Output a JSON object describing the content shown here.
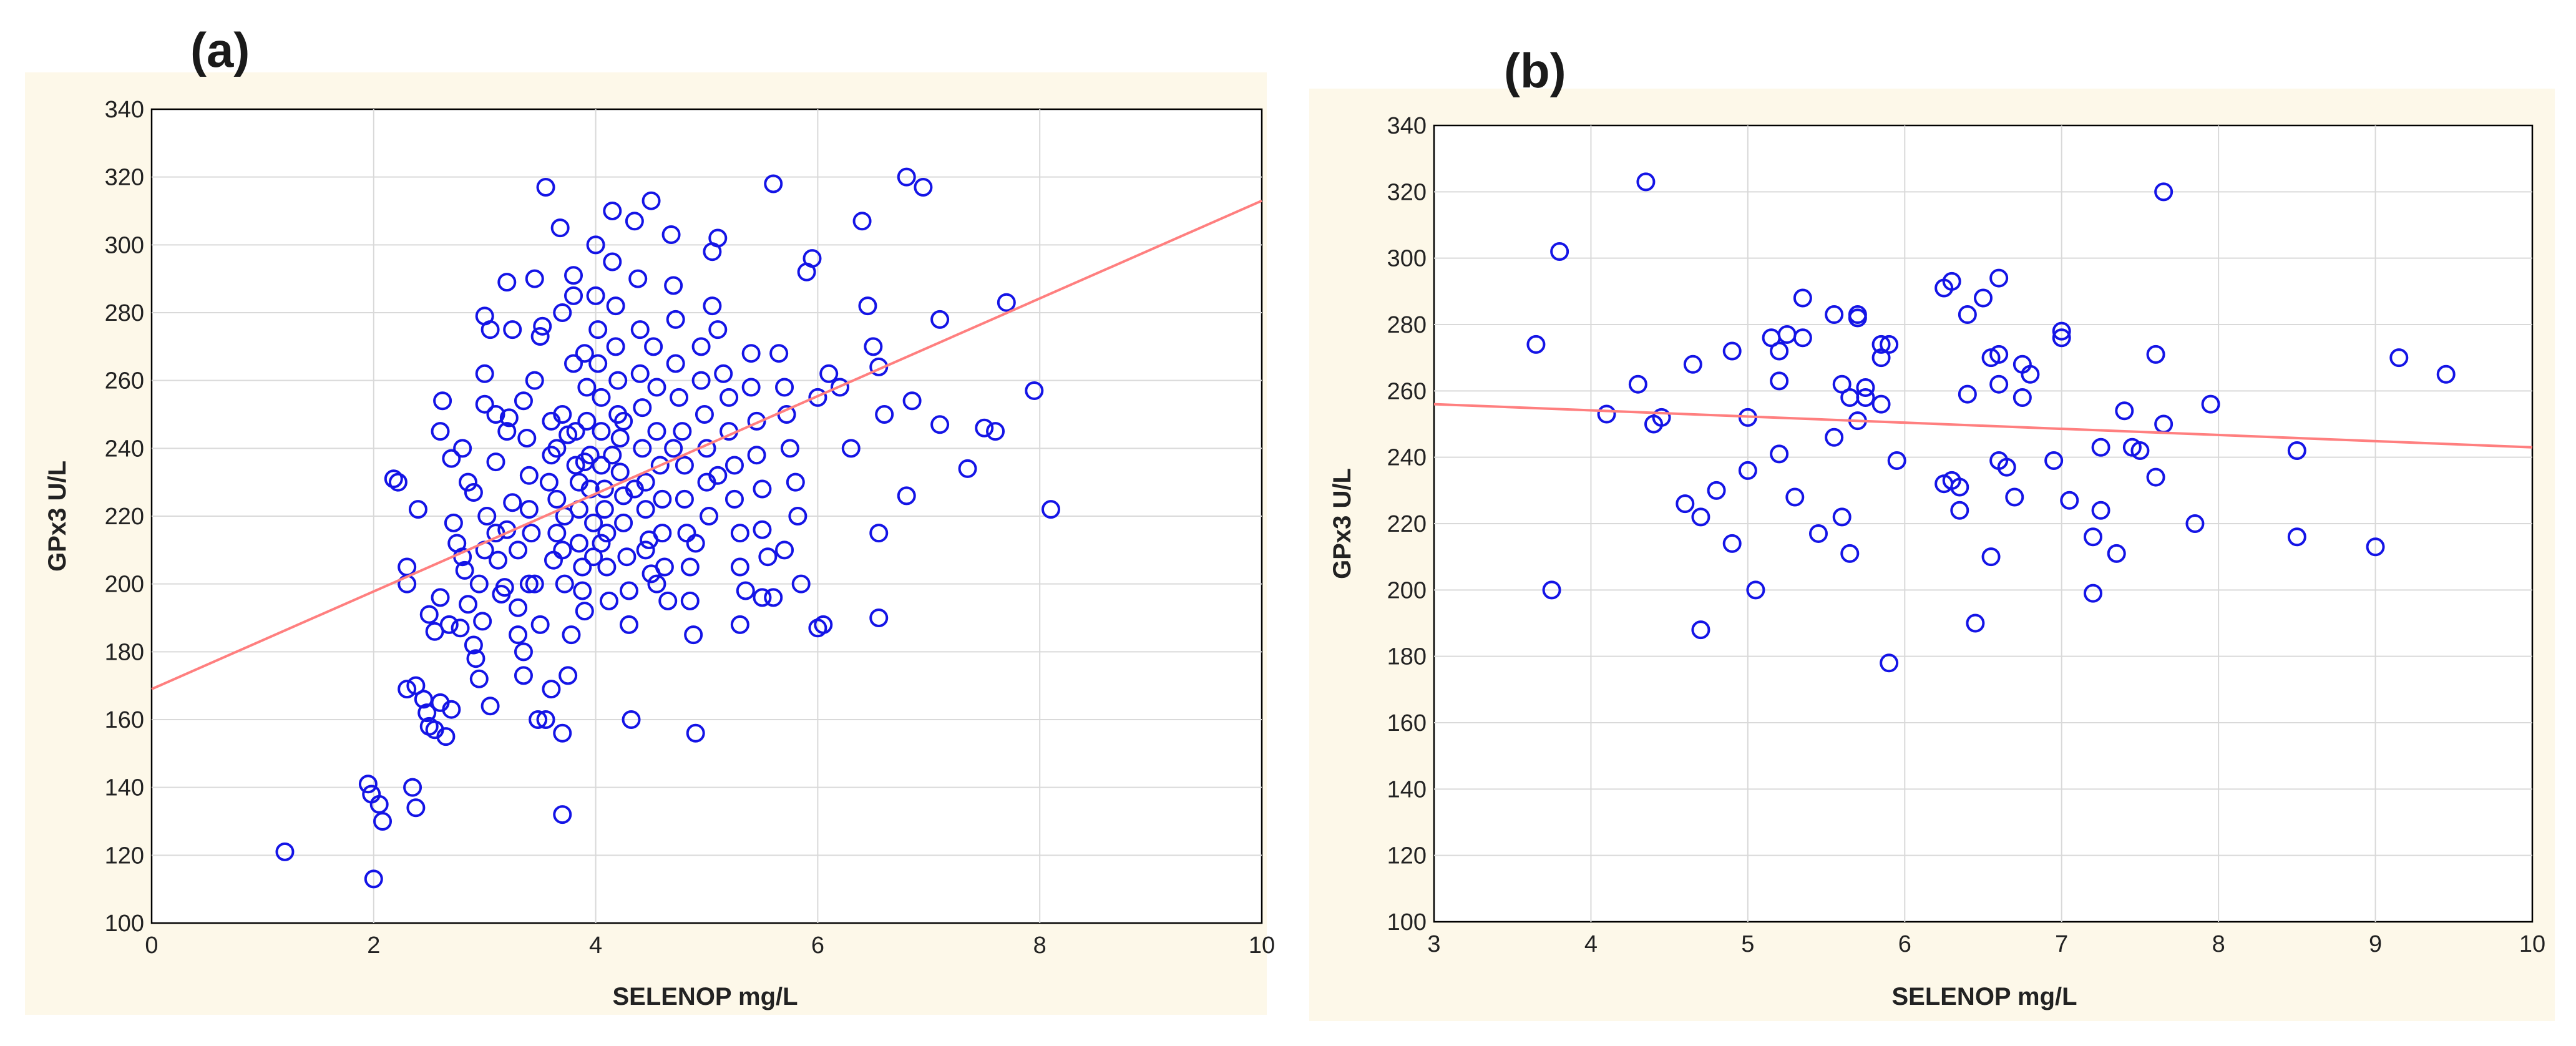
{
  "colors": {
    "points": "#1414e6",
    "fit_line": "#ff7f7f",
    "panel_bg": "#fdf8e9",
    "grid": "#d9d9d9"
  },
  "chart_data": [
    {
      "type": "scatter",
      "panel_label": "(a)",
      "xlabel": "SELENOP mg/L",
      "ylabel": "GPx3 U/L",
      "xlim": [
        0,
        10
      ],
      "ylim": [
        100,
        340
      ],
      "xticks": [
        0,
        2,
        4,
        6,
        8,
        10
      ],
      "yticks": [
        100,
        120,
        140,
        160,
        180,
        200,
        220,
        240,
        260,
        280,
        300,
        320,
        340
      ],
      "grid": true,
      "fit_line": {
        "x": [
          0,
          10
        ],
        "y": [
          169,
          313
        ]
      },
      "points": [
        [
          1.2,
          121
        ],
        [
          2.0,
          113
        ],
        [
          1.95,
          141
        ],
        [
          1.98,
          138
        ],
        [
          2.05,
          135
        ],
        [
          2.08,
          130
        ],
        [
          2.35,
          140
        ],
        [
          2.38,
          134
        ],
        [
          2.3,
          169
        ],
        [
          2.38,
          170
        ],
        [
          2.45,
          166
        ],
        [
          2.48,
          162
        ],
        [
          2.5,
          158
        ],
        [
          2.55,
          157
        ],
        [
          2.6,
          165
        ],
        [
          2.65,
          155
        ],
        [
          2.7,
          163
        ],
        [
          2.18,
          231
        ],
        [
          2.22,
          230
        ],
        [
          2.3,
          205
        ],
        [
          2.3,
          200
        ],
        [
          2.4,
          222
        ],
        [
          2.5,
          191
        ],
        [
          2.55,
          186
        ],
        [
          2.6,
          245
        ],
        [
          2.62,
          254
        ],
        [
          2.7,
          237
        ],
        [
          2.72,
          218
        ],
        [
          2.75,
          212
        ],
        [
          2.6,
          196
        ],
        [
          2.68,
          188
        ],
        [
          2.78,
          187
        ],
        [
          2.8,
          240
        ],
        [
          2.85,
          230
        ],
        [
          2.8,
          208
        ],
        [
          2.82,
          204
        ],
        [
          2.85,
          194
        ],
        [
          2.9,
          182
        ],
        [
          2.92,
          178
        ],
        [
          2.95,
          172
        ],
        [
          2.98,
          189
        ],
        [
          2.95,
          200
        ],
        [
          3.0,
          210
        ],
        [
          3.02,
          220
        ],
        [
          3.0,
          253
        ],
        [
          3.0,
          262
        ],
        [
          3.0,
          279
        ],
        [
          3.05,
          275
        ],
        [
          3.05,
          164
        ],
        [
          3.1,
          236
        ],
        [
          3.1,
          215
        ],
        [
          3.12,
          207
        ],
        [
          3.15,
          197
        ],
        [
          3.18,
          199
        ],
        [
          3.2,
          245
        ],
        [
          3.2,
          289
        ],
        [
          3.25,
          275
        ],
        [
          3.22,
          249
        ],
        [
          3.25,
          224
        ],
        [
          3.3,
          210
        ],
        [
          3.3,
          193
        ],
        [
          3.3,
          185
        ],
        [
          3.35,
          180
        ],
        [
          3.35,
          173
        ],
        [
          3.35,
          254
        ],
        [
          3.38,
          243
        ],
        [
          3.4,
          232
        ],
        [
          3.4,
          222
        ],
        [
          3.42,
          215
        ],
        [
          3.45,
          260
        ],
        [
          3.45,
          290
        ],
        [
          3.45,
          200
        ],
        [
          3.48,
          160
        ],
        [
          3.5,
          188
        ],
        [
          3.5,
          273
        ],
        [
          3.52,
          276
        ],
        [
          3.55,
          317
        ],
        [
          3.55,
          160
        ],
        [
          3.58,
          230
        ],
        [
          3.6,
          248
        ],
        [
          3.6,
          169
        ],
        [
          3.62,
          207
        ],
        [
          3.65,
          215
        ],
        [
          3.65,
          225
        ],
        [
          3.65,
          240
        ],
        [
          3.68,
          305
        ],
        [
          3.7,
          280
        ],
        [
          3.7,
          250
        ],
        [
          3.7,
          210
        ],
        [
          3.72,
          220
        ],
        [
          3.72,
          200
        ],
        [
          3.7,
          132
        ],
        [
          3.7,
          156
        ],
        [
          3.75,
          173
        ],
        [
          3.78,
          185
        ],
        [
          3.8,
          291
        ],
        [
          3.8,
          285
        ],
        [
          3.8,
          265
        ],
        [
          3.82,
          245
        ],
        [
          3.82,
          235
        ],
        [
          3.85,
          230
        ],
        [
          3.85,
          222
        ],
        [
          3.85,
          212
        ],
        [
          3.88,
          205
        ],
        [
          3.88,
          198
        ],
        [
          3.9,
          192
        ],
        [
          3.9,
          268
        ],
        [
          3.92,
          258
        ],
        [
          3.92,
          248
        ],
        [
          3.95,
          238
        ],
        [
          3.95,
          228
        ],
        [
          3.98,
          218
        ],
        [
          3.98,
          208
        ],
        [
          4.0,
          300
        ],
        [
          4.0,
          285
        ],
        [
          4.02,
          275
        ],
        [
          4.02,
          265
        ],
        [
          4.05,
          255
        ],
        [
          4.05,
          245
        ],
        [
          4.05,
          235
        ],
        [
          4.08,
          228
        ],
        [
          4.08,
          222
        ],
        [
          4.1,
          215
        ],
        [
          4.1,
          205
        ],
        [
          4.12,
          195
        ],
        [
          4.15,
          310
        ],
        [
          4.15,
          295
        ],
        [
          4.18,
          282
        ],
        [
          4.18,
          270
        ],
        [
          4.2,
          260
        ],
        [
          4.2,
          250
        ],
        [
          4.22,
          243
        ],
        [
          4.22,
          233
        ],
        [
          4.25,
          226
        ],
        [
          4.25,
          218
        ],
        [
          4.28,
          208
        ],
        [
          4.3,
          198
        ],
        [
          4.3,
          188
        ],
        [
          4.32,
          160
        ],
        [
          4.35,
          307
        ],
        [
          4.38,
          290
        ],
        [
          4.4,
          275
        ],
        [
          4.4,
          262
        ],
        [
          4.42,
          252
        ],
        [
          4.42,
          240
        ],
        [
          4.45,
          230
        ],
        [
          4.45,
          222
        ],
        [
          4.48,
          213
        ],
        [
          4.5,
          203
        ],
        [
          4.5,
          313
        ],
        [
          4.52,
          270
        ],
        [
          4.55,
          258
        ],
        [
          4.55,
          245
        ],
        [
          4.58,
          235
        ],
        [
          4.6,
          225
        ],
        [
          4.6,
          215
        ],
        [
          4.62,
          205
        ],
        [
          4.65,
          195
        ],
        [
          4.68,
          303
        ],
        [
          4.7,
          288
        ],
        [
          4.72,
          278
        ],
        [
          4.72,
          265
        ],
        [
          4.75,
          255
        ],
        [
          4.78,
          245
        ],
        [
          4.8,
          235
        ],
        [
          4.8,
          225
        ],
        [
          4.82,
          215
        ],
        [
          4.85,
          205
        ],
        [
          4.85,
          195
        ],
        [
          4.88,
          185
        ],
        [
          4.9,
          156
        ],
        [
          4.95,
          270
        ],
        [
          4.95,
          260
        ],
        [
          4.98,
          250
        ],
        [
          5.0,
          240
        ],
        [
          5.0,
          230
        ],
        [
          5.02,
          220
        ],
        [
          5.05,
          298
        ],
        [
          5.05,
          282
        ],
        [
          5.1,
          302
        ],
        [
          5.1,
          275
        ],
        [
          5.15,
          262
        ],
        [
          5.2,
          255
        ],
        [
          5.2,
          245
        ],
        [
          5.25,
          235
        ],
        [
          5.25,
          225
        ],
        [
          5.3,
          215
        ],
        [
          5.3,
          205
        ],
        [
          5.35,
          198
        ],
        [
          5.4,
          268
        ],
        [
          5.4,
          258
        ],
        [
          5.45,
          248
        ],
        [
          5.45,
          238
        ],
        [
          5.5,
          228
        ],
        [
          5.5,
          216
        ],
        [
          5.55,
          208
        ],
        [
          5.6,
          196
        ],
        [
          5.6,
          318
        ],
        [
          5.65,
          268
        ],
        [
          5.7,
          258
        ],
        [
          5.72,
          250
        ],
        [
          5.75,
          240
        ],
        [
          5.8,
          230
        ],
        [
          5.82,
          220
        ],
        [
          5.85,
          200
        ],
        [
          5.9,
          292
        ],
        [
          5.95,
          296
        ],
        [
          6.0,
          187
        ],
        [
          6.05,
          188
        ],
        [
          6.1,
          262
        ],
        [
          6.2,
          258
        ],
        [
          6.3,
          240
        ],
        [
          6.4,
          307
        ],
        [
          6.45,
          282
        ],
        [
          6.5,
          270
        ],
        [
          6.55,
          264
        ],
        [
          6.55,
          215
        ],
        [
          6.55,
          190
        ],
        [
          6.6,
          250
        ],
        [
          6.8,
          226
        ],
        [
          6.85,
          254
        ],
        [
          6.8,
          320
        ],
        [
          6.95,
          317
        ],
        [
          7.1,
          278
        ],
        [
          7.1,
          247
        ],
        [
          7.35,
          234
        ],
        [
          7.5,
          246
        ],
        [
          7.6,
          245
        ],
        [
          7.7,
          283
        ],
        [
          7.95,
          257
        ],
        [
          8.1,
          222
        ],
        [
          2.9,
          227
        ],
        [
          3.1,
          250
        ],
        [
          3.2,
          216
        ],
        [
          3.4,
          200
        ],
        [
          3.6,
          238
        ],
        [
          3.75,
          244
        ],
        [
          3.9,
          236
        ],
        [
          4.05,
          212
        ],
        [
          4.15,
          238
        ],
        [
          4.25,
          248
        ],
        [
          4.35,
          228
        ],
        [
          4.45,
          210
        ],
        [
          4.55,
          200
        ],
        [
          4.7,
          240
        ],
        [
          4.9,
          212
        ],
        [
          5.1,
          232
        ],
        [
          5.3,
          188
        ],
        [
          5.5,
          196
        ],
        [
          5.7,
          210
        ],
        [
          6.0,
          255
        ]
      ]
    },
    {
      "type": "scatter",
      "panel_label": "(b)",
      "xlabel": "SELENOP mg/L",
      "ylabel": "GPx3 U/L",
      "xlim": [
        3,
        10
      ],
      "ylim": [
        100,
        340
      ],
      "xticks": [
        3,
        4,
        5,
        6,
        7,
        8,
        9,
        10
      ],
      "yticks": [
        100,
        120,
        140,
        160,
        180,
        200,
        220,
        240,
        260,
        280,
        300,
        320,
        340
      ],
      "grid": true,
      "fit_line": {
        "x": [
          3,
          10
        ],
        "y": [
          256,
          243
        ]
      },
      "points": [
        [
          3.65,
          274
        ],
        [
          3.75,
          200
        ],
        [
          3.8,
          302
        ],
        [
          4.1,
          253
        ],
        [
          4.3,
          262
        ],
        [
          4.35,
          323
        ],
        [
          4.4,
          250
        ],
        [
          4.45,
          252
        ],
        [
          4.6,
          226
        ],
        [
          4.65,
          268
        ],
        [
          4.7,
          188
        ],
        [
          4.7,
          222
        ],
        [
          4.8,
          230
        ],
        [
          4.9,
          214
        ],
        [
          4.9,
          272
        ],
        [
          5.0,
          236
        ],
        [
          5.0,
          252
        ],
        [
          5.05,
          200
        ],
        [
          5.15,
          276
        ],
        [
          5.2,
          272
        ],
        [
          5.2,
          263
        ],
        [
          5.2,
          241
        ],
        [
          5.25,
          277
        ],
        [
          5.3,
          228
        ],
        [
          5.35,
          288
        ],
        [
          5.35,
          276
        ],
        [
          5.45,
          217
        ],
        [
          5.55,
          246
        ],
        [
          5.55,
          283
        ],
        [
          5.6,
          262
        ],
        [
          5.6,
          222
        ],
        [
          5.65,
          211
        ],
        [
          5.65,
          258
        ],
        [
          5.7,
          251
        ],
        [
          5.7,
          282
        ],
        [
          5.7,
          283
        ],
        [
          5.75,
          258
        ],
        [
          5.75,
          261
        ],
        [
          5.85,
          274
        ],
        [
          5.85,
          270
        ],
        [
          5.85,
          256
        ],
        [
          5.9,
          274
        ],
        [
          5.9,
          178
        ],
        [
          5.95,
          239
        ],
        [
          6.25,
          291
        ],
        [
          6.3,
          293
        ],
        [
          6.25,
          232
        ],
        [
          6.3,
          233
        ],
        [
          6.35,
          231
        ],
        [
          6.35,
          224
        ],
        [
          6.4,
          283
        ],
        [
          6.4,
          259
        ],
        [
          6.45,
          190
        ],
        [
          6.5,
          288
        ],
        [
          6.55,
          270
        ],
        [
          6.55,
          210
        ],
        [
          6.6,
          271
        ],
        [
          6.6,
          294
        ],
        [
          6.6,
          239
        ],
        [
          6.6,
          262
        ],
        [
          6.65,
          237
        ],
        [
          6.7,
          228
        ],
        [
          6.75,
          268
        ],
        [
          6.75,
          258
        ],
        [
          6.8,
          265
        ],
        [
          6.95,
          239
        ],
        [
          7.0,
          276
        ],
        [
          7.0,
          278
        ],
        [
          7.05,
          227
        ],
        [
          7.2,
          216
        ],
        [
          7.2,
          199
        ],
        [
          7.25,
          243
        ],
        [
          7.25,
          224
        ],
        [
          7.35,
          211
        ],
        [
          7.4,
          254
        ],
        [
          7.45,
          243
        ],
        [
          7.5,
          242
        ],
        [
          7.6,
          271
        ],
        [
          7.6,
          234
        ],
        [
          7.65,
          320
        ],
        [
          7.65,
          250
        ],
        [
          7.85,
          220
        ],
        [
          7.95,
          256
        ],
        [
          8.5,
          242
        ],
        [
          8.5,
          216
        ],
        [
          9.0,
          213
        ],
        [
          9.15,
          270
        ],
        [
          9.45,
          265
        ]
      ]
    }
  ]
}
